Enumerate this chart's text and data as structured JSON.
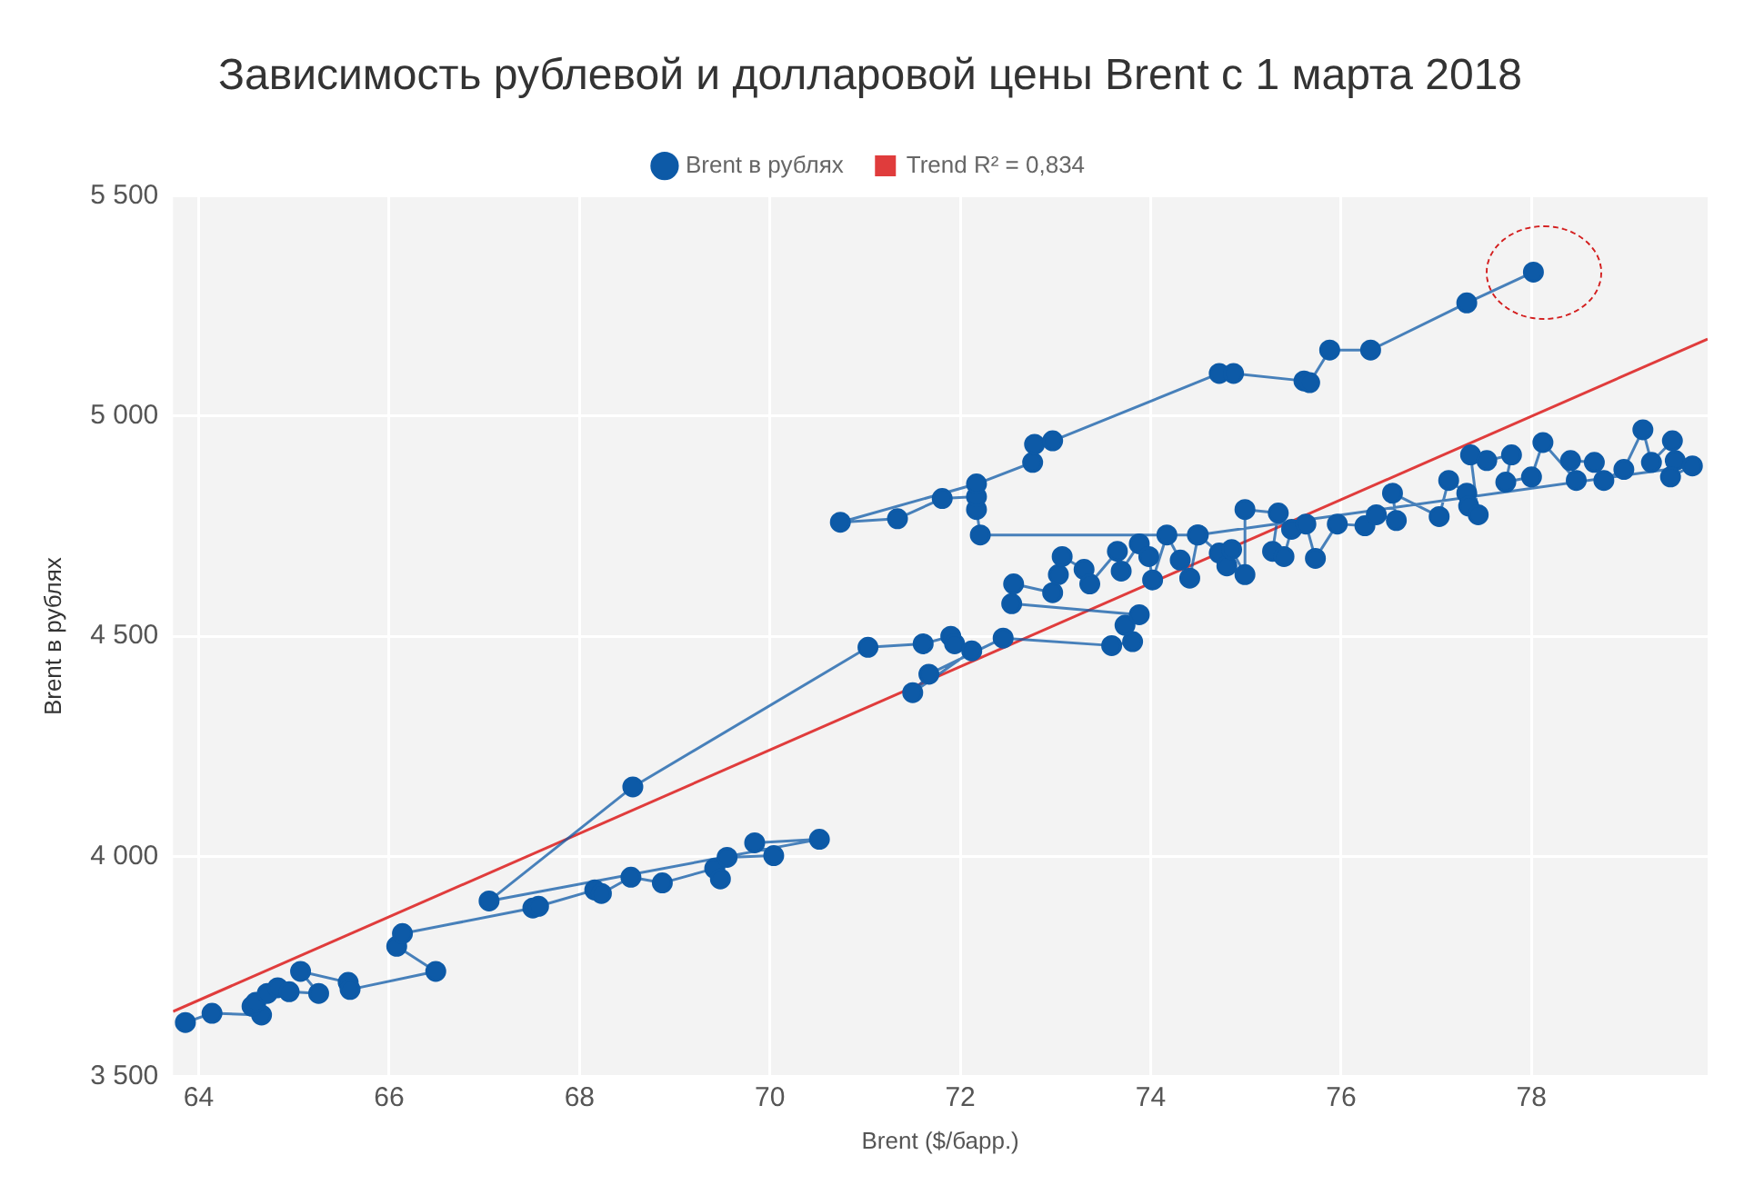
{
  "chart_data": {
    "type": "line",
    "title": "Зависимость рублевой и долларовой цены Brent с 1 марта 2018",
    "xlabel": "Brent ($/барр.)",
    "ylabel": "Brent в рублях",
    "legend": "top",
    "grid": true,
    "xlim": [
      63.73,
      79.85
    ],
    "xticks": [
      64,
      66,
      68,
      70,
      72,
      74,
      76,
      78
    ],
    "ylim": [
      3500,
      5500
    ],
    "yticks": [
      {
        "value": 3500,
        "label": "3 500"
      },
      {
        "value": 4000,
        "label": "4 000"
      },
      {
        "value": 4500,
        "label": "4 500"
      },
      {
        "value": 5000,
        "label": "5 000"
      },
      {
        "value": 5500,
        "label": "5 500"
      }
    ],
    "series": [
      {
        "name": "Brent в рублях",
        "type": "line",
        "marker": "circle",
        "color": "#0d5aa7",
        "x": [
          63.86,
          64.14,
          64.66,
          64.56,
          64.6,
          64.72,
          64.83,
          64.95,
          65.26,
          65.07,
          65.57,
          65.59,
          66.49,
          66.08,
          66.14,
          67.51,
          67.57,
          68.16,
          68.23,
          68.54,
          68.87,
          69.42,
          69.48,
          69.55,
          70.04,
          69.84,
          70.52,
          67.05,
          68.56,
          71.03,
          71.61,
          71.9,
          71.94,
          72.12,
          71.5,
          71.67,
          72.45,
          73.59,
          73.81,
          73.73,
          73.88,
          72.54,
          72.56,
          72.97,
          73.03,
          73.07,
          73.3,
          73.36,
          73.65,
          73.69,
          73.88,
          73.98,
          74.02,
          74.17,
          74.31,
          74.41,
          74.5,
          74.72,
          74.8,
          74.85,
          74.99,
          74.99,
          75.34,
          75.28,
          75.4,
          75.48,
          75.63,
          75.73,
          75.96,
          76.25,
          76.37,
          76.58,
          76.54,
          77.03,
          77.13,
          77.32,
          77.34,
          77.44,
          77.36,
          77.53,
          77.79,
          77.73,
          78.0,
          78.12,
          78.47,
          78.41,
          78.66,
          78.76,
          78.97,
          79.17,
          79.26,
          79.48,
          79.51,
          79.46,
          79.69,
          74.49,
          72.21,
          72.17,
          72.17,
          71.81,
          71.34,
          70.74,
          72.17,
          72.76,
          72.78,
          72.97,
          74.72,
          74.87,
          75.61,
          75.67,
          75.88,
          76.31,
          77.32,
          78.02
        ],
        "values": [
          3623,
          3644,
          3640,
          3660,
          3669,
          3689,
          3702,
          3693,
          3689,
          3739,
          3714,
          3698,
          3739,
          3796,
          3825,
          3883,
          3887,
          3924,
          3916,
          3953,
          3940,
          3973,
          3949,
          3998,
          4002,
          4031,
          4039,
          3899,
          4158,
          4475,
          4483,
          4500,
          4483,
          4467,
          4372,
          4414,
          4496,
          4479,
          4488,
          4525,
          4549,
          4574,
          4619,
          4599,
          4640,
          4681,
          4652,
          4619,
          4693,
          4648,
          4710,
          4681,
          4628,
          4730,
          4673,
          4632,
          4730,
          4689,
          4660,
          4697,
          4640,
          4788,
          4780,
          4693,
          4681,
          4743,
          4755,
          4677,
          4755,
          4751,
          4776,
          4763,
          4825,
          4772,
          4854,
          4825,
          4796,
          4776,
          4912,
          4899,
          4912,
          4850,
          4862,
          4940,
          4854,
          4899,
          4895,
          4854,
          4879,
          4969,
          4895,
          4944,
          4899,
          4862,
          4887,
          4730,
          4730,
          4788,
          4817,
          4813,
          4767,
          4759,
          4846,
          4895,
          4936,
          4944,
          5097,
          5097,
          5080,
          5076,
          5150,
          5150,
          5257,
          5327
        ]
      },
      {
        "name": "Trend R² = 0,834",
        "type": "line",
        "marker": "none",
        "color": "#e03c3c",
        "x": [
          63.73,
          79.85
        ],
        "values": [
          3648,
          5175
        ]
      }
    ]
  }
}
